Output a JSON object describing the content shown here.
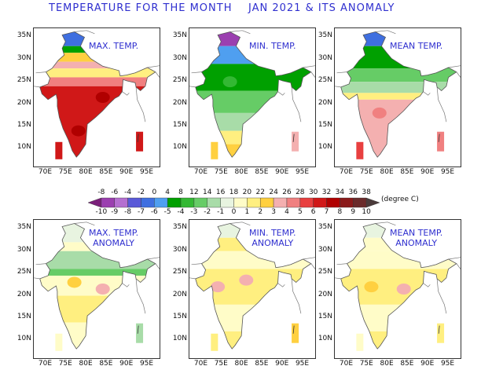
{
  "title": "TEMPERATURE FOR THE MONTH    JAN 2021 & ITS ANOMALY",
  "panels": [
    {
      "label": "MAX. TEMP.",
      "palette": "temp",
      "theme": "hot"
    },
    {
      "label": "MIN. TEMP.",
      "palette": "temp",
      "theme": "cool"
    },
    {
      "label": "MEAN TEMP.",
      "palette": "temp",
      "theme": "mid"
    },
    {
      "label": "MAX. TEMP.\nANOMALY",
      "palette": "anom",
      "theme": "maxanom"
    },
    {
      "label": "MIN. TEMP.\nANOMALY",
      "palette": "anom",
      "theme": "minanom"
    },
    {
      "label": "MEAN TEMP.\nANOMALY",
      "palette": "anom",
      "theme": "meananom"
    }
  ],
  "axes": {
    "lat_labels": [
      "35N",
      "30N",
      "25N",
      "20N",
      "15N",
      "10N"
    ],
    "lon_labels": [
      "70E",
      "75E",
      "80E",
      "85E",
      "90E",
      "95E"
    ]
  },
  "colorbar": {
    "top_labels": [
      "-8",
      "-6",
      "-4",
      "-2",
      "0",
      "4",
      "8",
      "12",
      "14",
      "16",
      "18",
      "20",
      "22",
      "24",
      "26",
      "28",
      "30",
      "32",
      "34",
      "36",
      "38"
    ],
    "bottom_labels": [
      "-10",
      "-9",
      "-8",
      "-7",
      "-6",
      "-5",
      "-4",
      "-3",
      "-2",
      "-1",
      "0",
      "1",
      "2",
      "3",
      "4",
      "5",
      "6",
      "7",
      "8",
      "9",
      "10"
    ],
    "unit": "(degree C)",
    "colors": [
      "#7a1f7a",
      "#9b3fb0",
      "#b56fd0",
      "#5a5ad8",
      "#3f6fe0",
      "#4f9ff0",
      "#00a000",
      "#33b833",
      "#66cc66",
      "#a8dca8",
      "#e8f4e0",
      "#fffcc8",
      "#ffef80",
      "#ffd040",
      "#f4b0b0",
      "#f08080",
      "#e84040",
      "#d01818",
      "#b00000",
      "#8a1a1a",
      "#6a2a2a",
      "#4a3a3a"
    ]
  }
}
